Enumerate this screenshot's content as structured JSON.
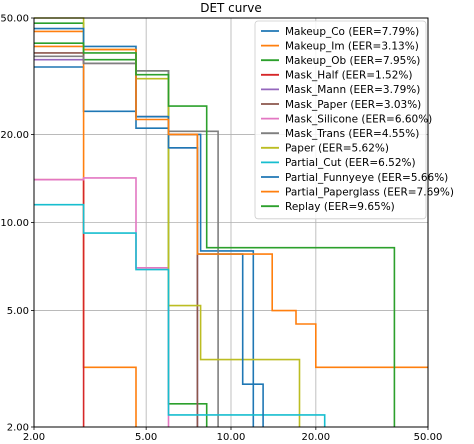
{
  "chart_data": {
    "type": "line",
    "title": "DET curve",
    "scale": "log",
    "xlim": [
      2,
      50
    ],
    "ylim": [
      2,
      50
    ],
    "xticks": [
      "2.00",
      "5.00",
      "10.00",
      "20.00",
      "50.00"
    ],
    "yticks": [
      "2.00",
      "5.00",
      "10.00",
      "20.00",
      "50.00"
    ],
    "xtick_values": [
      2,
      5,
      10,
      20,
      50
    ],
    "ytick_values": [
      2,
      5,
      10,
      20,
      50
    ],
    "grid": true,
    "legend_position": "upper-right",
    "series": [
      {
        "name": "Makeup_Co (EER=7.79%)",
        "color": "#1f77b4",
        "points": [
          [
            2,
            34
          ],
          [
            3,
            34
          ],
          [
            3,
            24
          ],
          [
            4.6,
            24
          ],
          [
            4.6,
            21
          ],
          [
            6,
            21
          ],
          [
            6,
            20
          ],
          [
            7.8,
            20
          ],
          [
            7.8,
            8
          ],
          [
            12,
            8
          ],
          [
            12,
            2
          ]
        ]
      },
      {
        "name": "Makeup_Im (EER=3.13%)",
        "color": "#ff7f0e",
        "points": [
          [
            2,
            45
          ],
          [
            3,
            45
          ],
          [
            3,
            3.2
          ],
          [
            4.6,
            3.2
          ],
          [
            4.6,
            2
          ]
        ]
      },
      {
        "name": "Makeup_Ob (EER=7.95%)",
        "color": "#2ca02c",
        "points": [
          [
            2,
            48
          ],
          [
            3,
            48
          ],
          [
            3,
            36
          ],
          [
            4.6,
            36
          ],
          [
            4.6,
            33
          ],
          [
            6,
            33
          ],
          [
            6,
            2.4
          ],
          [
            8.2,
            2.4
          ],
          [
            8.2,
            2
          ]
        ]
      },
      {
        "name": "Mask_Half (EER=1.52%)",
        "color": "#d62728",
        "points": [
          [
            2,
            14
          ],
          [
            3,
            14
          ],
          [
            3,
            2
          ]
        ]
      },
      {
        "name": "Mask_Mann (EER=3.79%)",
        "color": "#9467bd",
        "points": [
          [
            2,
            36
          ],
          [
            3,
            36
          ],
          [
            3,
            35
          ],
          [
            4.6,
            35
          ],
          [
            4.6,
            23
          ],
          [
            6,
            23
          ],
          [
            6,
            18
          ],
          [
            7.6,
            18
          ],
          [
            7.6,
            2
          ]
        ]
      },
      {
        "name": "Mask_Paper (EER=3.03%)",
        "color": "#8c564b",
        "points": [
          [
            2,
            38
          ],
          [
            3,
            38
          ],
          [
            3,
            35
          ],
          [
            4.6,
            35
          ],
          [
            4.6,
            23
          ],
          [
            6,
            23
          ],
          [
            6,
            20
          ],
          [
            7.6,
            20
          ],
          [
            7.6,
            2
          ]
        ]
      },
      {
        "name": "Mask_Silicone (EER=6.60%)",
        "color": "#e377c2",
        "points": [
          [
            2,
            14
          ],
          [
            3,
            14
          ],
          [
            3,
            14.2
          ],
          [
            4.6,
            14.2
          ],
          [
            4.6,
            7
          ],
          [
            6,
            7
          ],
          [
            6,
            2
          ]
        ]
      },
      {
        "name": "Mask_Trans (EER=4.55%)",
        "color": "#7f7f7f",
        "points": [
          [
            2,
            37
          ],
          [
            3,
            37
          ],
          [
            3,
            35
          ],
          [
            4.6,
            35
          ],
          [
            4.6,
            33
          ],
          [
            6,
            33
          ],
          [
            6,
            20.5
          ],
          [
            9,
            20.5
          ],
          [
            9,
            2
          ]
        ]
      },
      {
        "name": "Paper (EER=5.62%)",
        "color": "#bcbd22",
        "points": [
          [
            2,
            50
          ],
          [
            3,
            50
          ],
          [
            3,
            39
          ],
          [
            4.6,
            39
          ],
          [
            4.6,
            31
          ],
          [
            6,
            31
          ],
          [
            6,
            5.2
          ],
          [
            7.8,
            5.2
          ],
          [
            7.8,
            3.4
          ],
          [
            17.5,
            3.4
          ],
          [
            17.5,
            2
          ]
        ]
      },
      {
        "name": "Partial_Cut (EER=6.52%)",
        "color": "#17becf",
        "points": [
          [
            2,
            11.5
          ],
          [
            3,
            11.5
          ],
          [
            3,
            9.2
          ],
          [
            4.6,
            9.2
          ],
          [
            4.6,
            6.9
          ],
          [
            6,
            6.9
          ],
          [
            6,
            2.2
          ],
          [
            21.5,
            2.2
          ],
          [
            21.5,
            2
          ]
        ]
      },
      {
        "name": "Partial_Funnyeye (EER=5.66%)",
        "color": "#1f77b4",
        "points": [
          [
            2,
            46
          ],
          [
            3,
            46
          ],
          [
            3,
            40
          ],
          [
            4.6,
            40
          ],
          [
            4.6,
            23
          ],
          [
            6,
            23
          ],
          [
            6,
            18
          ],
          [
            7.6,
            18
          ],
          [
            7.6,
            7.8
          ],
          [
            11,
            7.8
          ],
          [
            11,
            2.8
          ],
          [
            13,
            2.8
          ],
          [
            13,
            2
          ]
        ]
      },
      {
        "name": "Partial_Paperglass (EER=7.69%)",
        "color": "#ff7f0e",
        "points": [
          [
            2,
            40
          ],
          [
            3,
            40
          ],
          [
            3,
            39
          ],
          [
            4.6,
            39
          ],
          [
            4.6,
            22.5
          ],
          [
            6,
            22.5
          ],
          [
            6,
            20
          ],
          [
            7.6,
            20
          ],
          [
            7.6,
            7.8
          ],
          [
            14,
            7.8
          ],
          [
            14,
            5
          ],
          [
            17,
            5
          ],
          [
            17,
            4.5
          ],
          [
            20,
            4.5
          ],
          [
            20,
            3.2
          ],
          [
            50,
            3.2
          ]
        ]
      },
      {
        "name": "Replay (EER=9.65%)",
        "color": "#2ca02c",
        "points": [
          [
            2,
            41
          ],
          [
            3,
            41
          ],
          [
            3,
            38
          ],
          [
            4.6,
            38
          ],
          [
            4.6,
            32
          ],
          [
            6,
            32
          ],
          [
            6,
            25
          ],
          [
            8.2,
            25
          ],
          [
            8.2,
            8.2
          ],
          [
            38,
            8.2
          ],
          [
            38,
            2
          ]
        ]
      }
    ]
  }
}
